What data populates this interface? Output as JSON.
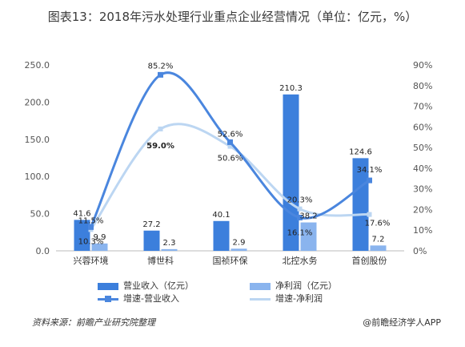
{
  "chart_data": {
    "type": "bar",
    "title": "图表13：2018年污水处理行业重点企业经营情况（单位：亿元，%）",
    "categories": [
      "兴蓉环境",
      "博世科",
      "国祯环保",
      "北控水务",
      "首创股份"
    ],
    "series": [
      {
        "name": "营业收入（亿元）",
        "axis": "left",
        "kind": "bar",
        "color": "#3c7fdc",
        "values": [
          41.6,
          27.2,
          40.1,
          210.3,
          124.6
        ],
        "labels": [
          "41.6",
          "27.2",
          "40.1",
          "210.3",
          "124.6"
        ]
      },
      {
        "name": "净利润（亿元）",
        "axis": "left",
        "kind": "bar",
        "color": "#8ab4ee",
        "values": [
          9.9,
          2.3,
          2.9,
          38.2,
          7.2
        ],
        "labels": [
          "9.9",
          "2.3",
          "2.9",
          "38.2",
          "7.2"
        ]
      },
      {
        "name": "增速-营业收入",
        "axis": "right",
        "kind": "line",
        "color": "#4a86de",
        "values": [
          11.5,
          85.2,
          52.6,
          16.1,
          34.1
        ],
        "labels": [
          "11.5%",
          "85.2%",
          "52.6%",
          "16.1%",
          "34.1%"
        ]
      },
      {
        "name": "增速-净利润",
        "axis": "right",
        "kind": "line",
        "color": "#bcd6f2",
        "values": [
          10.3,
          59.0,
          50.6,
          20.3,
          17.6
        ],
        "labels": [
          "10.3%",
          "59.0%",
          "50.6%",
          "20.3%",
          "17.6%"
        ]
      }
    ],
    "ylim_left": [
      0,
      250
    ],
    "yticks_left": [
      "0.0",
      "50.0",
      "100.0",
      "150.0",
      "200.0",
      "250.0"
    ],
    "ylim_right": [
      0,
      90
    ],
    "yticks_right": [
      "0%",
      "10%",
      "20%",
      "30%",
      "40%",
      "50%",
      "60%",
      "70%",
      "80%",
      "90%"
    ],
    "legend_position": "bottom",
    "grid": false
  },
  "footer": {
    "source": "资料来源：前瞻产业研究院整理",
    "brand": "@前瞻经济学人APP"
  }
}
